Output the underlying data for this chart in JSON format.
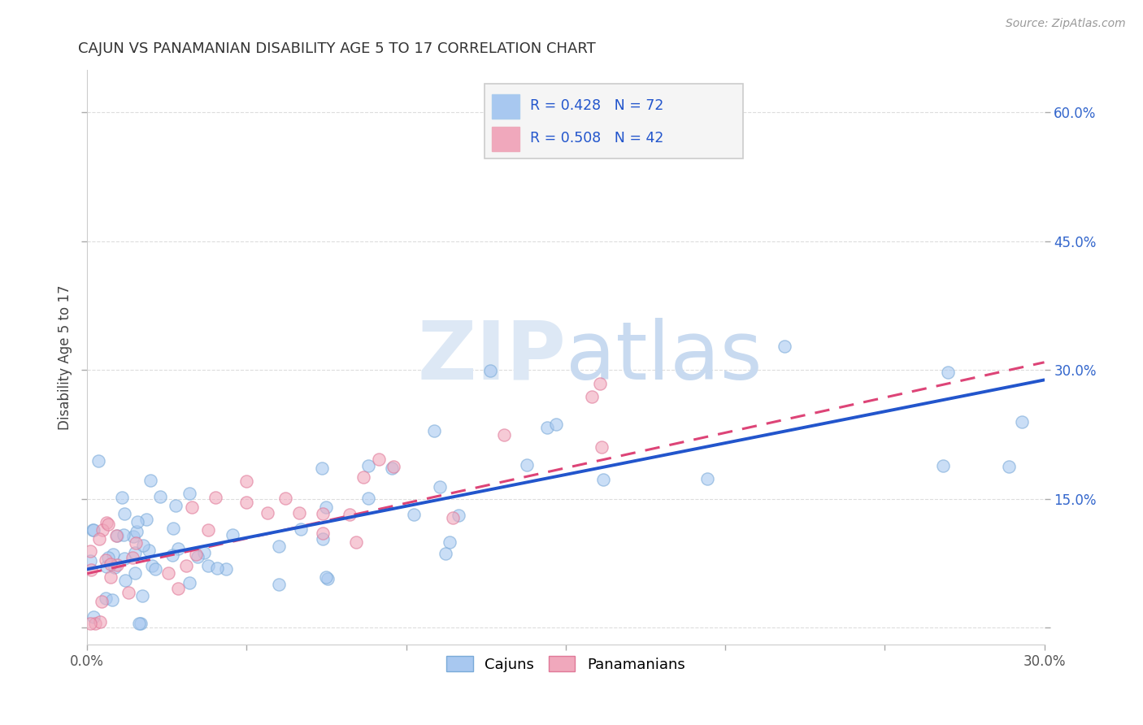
{
  "title": "CAJUN VS PANAMANIAN DISABILITY AGE 5 TO 17 CORRELATION CHART",
  "source": "Source: ZipAtlas.com",
  "ylabel_label": "Disability Age 5 to 17",
  "xlim": [
    0.0,
    0.3
  ],
  "ylim": [
    -0.02,
    0.65
  ],
  "cajun_R": 0.428,
  "cajun_N": 72,
  "panamanian_R": 0.508,
  "panamanian_N": 42,
  "cajun_color": "#a8c8f0",
  "panamanian_color": "#f0a8bc",
  "cajun_edge_color": "#7aaad8",
  "panamanian_edge_color": "#e07898",
  "cajun_line_color": "#2255cc",
  "panamanian_line_color": "#dd4477",
  "watermark_color": "#dde8f5",
  "background_color": "#ffffff",
  "legend_box_color": "#f5f5f5",
  "legend_border_color": "#cccccc",
  "legend_text_color": "#2255cc",
  "ytick_color": "#3366cc",
  "grid_color": "#dddddd",
  "title_color": "#333333",
  "source_color": "#999999"
}
